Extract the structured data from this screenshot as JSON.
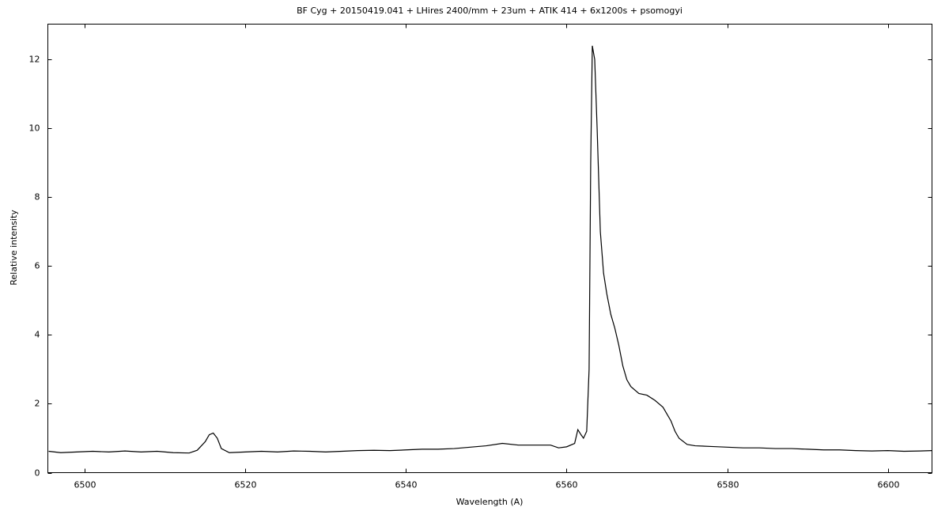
{
  "chart_data": {
    "type": "line",
    "title": "BF Cyg + 20150419.041 + LHires 2400/mm + 23um + ATIK 414 + 6x1200s + psomogyi",
    "x_label": "Wavelength (A)",
    "y_label": "Relative intensity",
    "x": [
      6495.5,
      6497,
      6499,
      6501,
      6503,
      6505,
      6507,
      6509,
      6511,
      6513,
      6514,
      6515,
      6515.5,
      6516,
      6516.5,
      6517,
      6518,
      6520,
      6522,
      6524,
      6526,
      6528,
      6530,
      6532,
      6534,
      6536,
      6538,
      6540,
      6542,
      6544,
      6546,
      6548,
      6550,
      6552,
      6554,
      6556,
      6558,
      6559,
      6560,
      6561,
      6561.4,
      6561.8,
      6562.1,
      6562.5,
      6562.8,
      6563.0,
      6563.2,
      6563.5,
      6563.8,
      6564.2,
      6564.6,
      6565,
      6565.5,
      6566,
      6566.5,
      6567,
      6567.5,
      6568,
      6569,
      6570,
      6571,
      6572,
      6573,
      6573.5,
      6574,
      6575,
      6576,
      6578,
      6580,
      6582,
      6584,
      6586,
      6588,
      6590,
      6592,
      6594,
      6596,
      6598,
      6600,
      6602,
      6604,
      6605.5
    ],
    "values": [
      0.62,
      0.58,
      0.6,
      0.62,
      0.6,
      0.63,
      0.6,
      0.62,
      0.58,
      0.57,
      0.65,
      0.9,
      1.1,
      1.15,
      1.0,
      0.7,
      0.58,
      0.6,
      0.62,
      0.6,
      0.63,
      0.62,
      0.6,
      0.62,
      0.64,
      0.65,
      0.64,
      0.66,
      0.68,
      0.68,
      0.7,
      0.74,
      0.78,
      0.85,
      0.8,
      0.8,
      0.8,
      0.72,
      0.75,
      0.85,
      1.25,
      1.1,
      1.0,
      1.2,
      3.0,
      9.0,
      12.4,
      12.0,
      10.0,
      7.0,
      5.8,
      5.2,
      4.6,
      4.2,
      3.7,
      3.1,
      2.7,
      2.5,
      2.3,
      2.25,
      2.1,
      1.9,
      1.5,
      1.2,
      1.0,
      0.82,
      0.78,
      0.76,
      0.74,
      0.72,
      0.72,
      0.7,
      0.7,
      0.68,
      0.66,
      0.66,
      0.64,
      0.63,
      0.64,
      0.62,
      0.63,
      0.64
    ],
    "color": "#000000",
    "xlim": [
      6495.4,
      6605.5
    ],
    "ylim": [
      0,
      13.03
    ],
    "xticks": [
      6500,
      6520,
      6540,
      6560,
      6580,
      6600
    ],
    "yticks": [
      0,
      2,
      4,
      6,
      8,
      10,
      12
    ],
    "grid": false
  }
}
